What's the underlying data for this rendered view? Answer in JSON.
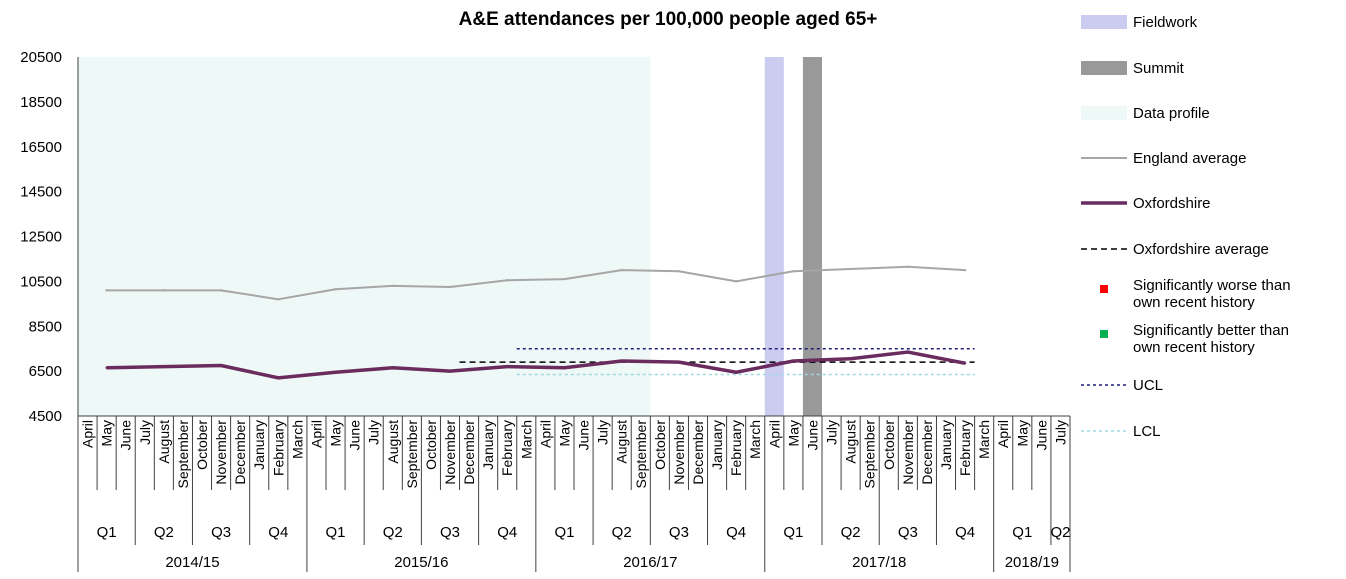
{
  "chart_data": {
    "type": "line",
    "title": "A&E attendances per 100,000 people aged 65+",
    "xlabel": "",
    "ylabel": "",
    "ylim": [
      4500,
      20500
    ],
    "yticks": [
      4500,
      6500,
      8500,
      10500,
      12500,
      14500,
      16500,
      18500,
      20500
    ],
    "months": [
      "April",
      "May",
      "June",
      "July",
      "August",
      "September",
      "October",
      "November",
      "December",
      "January",
      "February",
      "March",
      "April",
      "May",
      "June",
      "July",
      "August",
      "September",
      "October",
      "November",
      "December",
      "January",
      "February",
      "March",
      "April",
      "May",
      "June",
      "July",
      "August",
      "September",
      "October",
      "November",
      "December",
      "January",
      "February",
      "March",
      "April",
      "May",
      "June",
      "July",
      "August",
      "September",
      "October",
      "November",
      "December",
      "January",
      "February",
      "March",
      "April",
      "May",
      "June",
      "July"
    ],
    "quarters": [
      "Q1",
      "Q2",
      "Q3",
      "Q4",
      "Q1",
      "Q2",
      "Q3",
      "Q4",
      "Q1",
      "Q2",
      "Q3",
      "Q4",
      "Q1",
      "Q2",
      "Q3",
      "Q4",
      "Q1",
      "Q2"
    ],
    "years": [
      "2014/15",
      "2015/16",
      "2016/17",
      "2017/18",
      "2018/19"
    ],
    "series": [
      {
        "name": "England average",
        "color": "#a6a6a6",
        "points": [
          [
            1,
            10100
          ],
          [
            4,
            10100
          ],
          [
            7,
            10100
          ],
          [
            10,
            9700
          ],
          [
            13,
            10150
          ],
          [
            16,
            10300
          ],
          [
            19,
            10250
          ],
          [
            22,
            10550
          ],
          [
            25,
            10600
          ],
          [
            28,
            11000
          ],
          [
            31,
            10950
          ],
          [
            34,
            10500
          ],
          [
            37,
            10950
          ],
          [
            40,
            11050
          ],
          [
            43,
            11150
          ],
          [
            46,
            11000
          ]
        ]
      },
      {
        "name": "Oxfordshire",
        "color": "#6a2c5e",
        "points": [
          [
            1,
            6650
          ],
          [
            4,
            6700
          ],
          [
            7,
            6750
          ],
          [
            10,
            6200
          ],
          [
            13,
            6450
          ],
          [
            16,
            6650
          ],
          [
            19,
            6500
          ],
          [
            22,
            6700
          ],
          [
            25,
            6650
          ],
          [
            28,
            6950
          ],
          [
            31,
            6900
          ],
          [
            34,
            6450
          ],
          [
            37,
            6950
          ],
          [
            40,
            7050
          ],
          [
            43,
            7350
          ],
          [
            46,
            6850
          ]
        ]
      }
    ],
    "reference_lines": [
      {
        "name": "Oxfordshire average",
        "value": 6900,
        "from": 20,
        "to": 47,
        "color": "#000000",
        "dash": "dashed"
      },
      {
        "name": "UCL",
        "value": 7500,
        "from": 23,
        "to": 47,
        "color": "#1f1f7a",
        "dash": "dotted"
      },
      {
        "name": "LCL",
        "value": 6350,
        "from": 23,
        "to": 47,
        "color": "#9fd8df",
        "dash": "dotted"
      }
    ],
    "shaded_regions": [
      {
        "name": "Data profile",
        "from": 0,
        "to": 30,
        "color": "#eef8f6"
      },
      {
        "name": "Fieldwork",
        "from": 36,
        "to": 37,
        "color": "#ccccf0"
      },
      {
        "name": "Summit",
        "from": 38,
        "to": 39,
        "color": "#999999"
      }
    ],
    "legend": {
      "placement": "right",
      "entries": [
        {
          "label": "Fieldwork",
          "kind": "box",
          "color": "#ccccf0"
        },
        {
          "label": "Summit",
          "kind": "box",
          "color": "#999999"
        },
        {
          "label": "Data profile",
          "kind": "box",
          "color": "#eef8f6"
        },
        {
          "label": "England average",
          "kind": "line",
          "color": "#a6a6a6"
        },
        {
          "label": "Oxfordshire",
          "kind": "thickline",
          "color": "#6a2c5e"
        },
        {
          "label": "Oxfordshire average",
          "kind": "dash",
          "color": "#000000"
        },
        {
          "label": "Significantly worse than own recent history",
          "kind": "marker",
          "color": "#ff0000"
        },
        {
          "label": "Significantly better than own recent history",
          "kind": "marker",
          "color": "#00b050"
        },
        {
          "label": "UCL",
          "kind": "dot",
          "color": "#1f1f7a"
        },
        {
          "label": "LCL",
          "kind": "dot",
          "color": "#9fd8df"
        }
      ]
    }
  }
}
